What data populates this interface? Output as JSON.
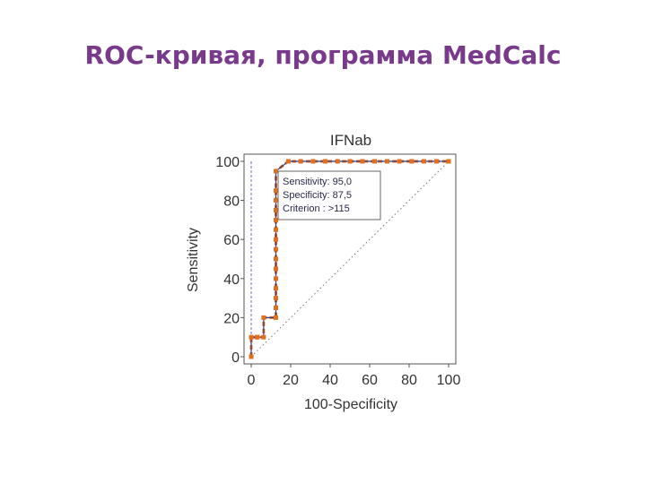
{
  "slide": {
    "title": "ROC-кривая, программа MedCalc"
  },
  "chart_data": {
    "type": "line",
    "title": "IFNab",
    "xlabel": "100-Specificity",
    "ylabel": "Sensitivity",
    "xlim": [
      0,
      100
    ],
    "ylim": [
      0,
      100
    ],
    "x_ticks": [
      "0",
      "20",
      "40",
      "60",
      "80",
      "100"
    ],
    "y_ticks": [
      "0",
      "20",
      "40",
      "60",
      "80",
      "100"
    ],
    "grid": false,
    "series": [
      {
        "role": "roc",
        "x": [
          0,
          0,
          3.1,
          3.1,
          6.3,
          6.3,
          12.5,
          12.5,
          12.5,
          12.5,
          12.5,
          12.5,
          12.5,
          12.5,
          12.5,
          12.5,
          12.5,
          12.5,
          12.5,
          12.5,
          12.5,
          18.8,
          25,
          31.3,
          37.5,
          43.8,
          50,
          56.3,
          62.5,
          68.8,
          75,
          81.3,
          87.5,
          93.8,
          100
        ],
        "y": [
          0,
          10,
          10,
          10,
          10,
          20,
          20,
          25,
          30,
          35,
          40,
          45,
          50,
          55,
          60,
          65,
          70,
          75,
          80,
          85,
          95,
          100,
          100,
          100,
          100,
          100,
          100,
          100,
          100,
          100,
          100,
          100,
          100,
          100,
          100
        ],
        "color": "#e07020",
        "line_color": "#3a3a8a"
      },
      {
        "role": "confidence-bound",
        "x": [
          0,
          0,
          0,
          0
        ],
        "y": [
          0,
          10,
          70,
          100
        ],
        "color": "#6a6ad0"
      },
      {
        "role": "diagonal",
        "x": [
          0,
          100
        ],
        "y": [
          0,
          100
        ],
        "color": "#777777"
      }
    ],
    "annotation": {
      "sensitivity": "Sensitivity: 95,0",
      "specificity": "Specificity: 87,5",
      "criterion": "Criterion : >115"
    }
  }
}
